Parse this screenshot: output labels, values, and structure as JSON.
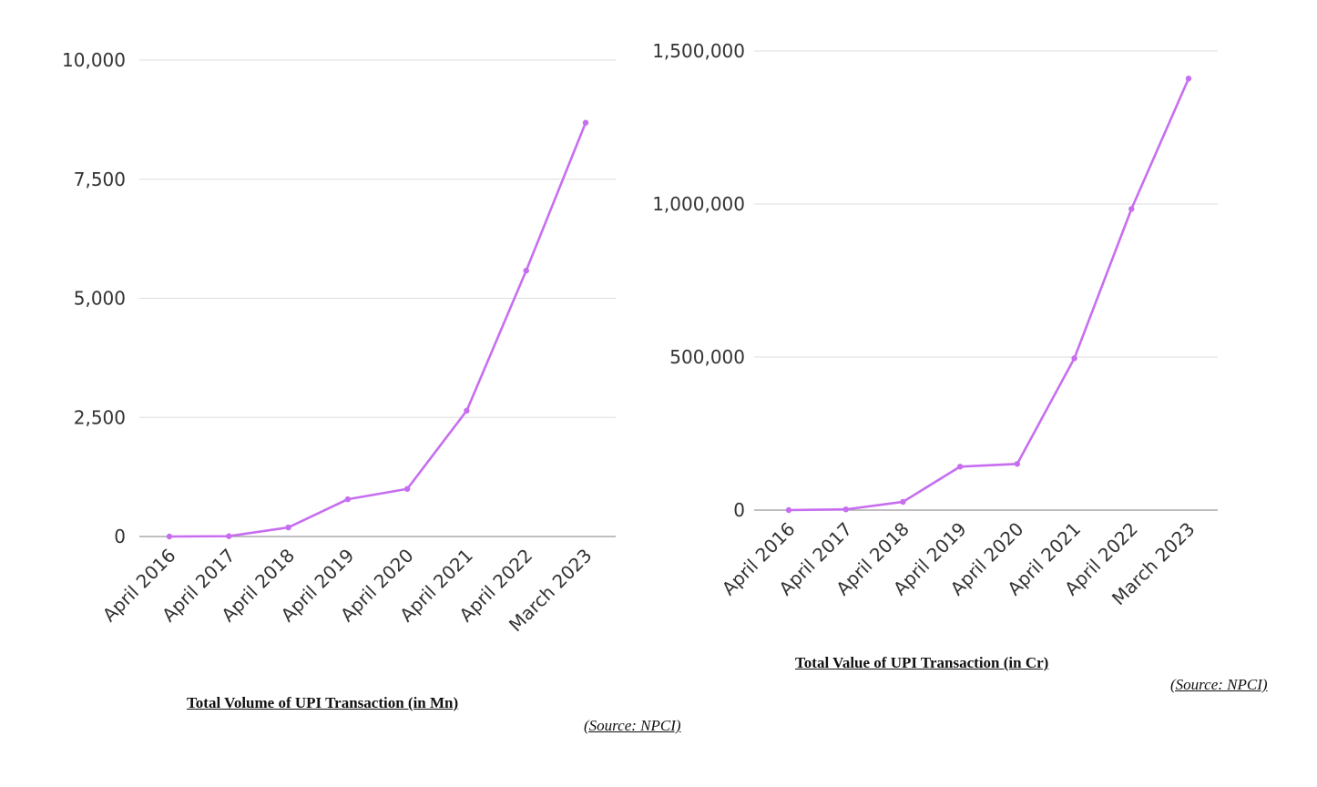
{
  "colors": {
    "line": "#c76ef0",
    "grid": "#dddddd",
    "baseline": "#999999",
    "text": "#333333"
  },
  "captions": {
    "left": "Total Volume of UPI Transaction (in Mn)",
    "right": "Total Value of UPI Transaction (in Cr)",
    "left_source": "(Source: NPCI)",
    "right_source": "(Source: NPCI)"
  },
  "chart_data": [
    {
      "type": "line",
      "title": "Total Volume of UPI Transaction (in Mn)",
      "xlabel": "",
      "ylabel": "",
      "categories": [
        "April 2016",
        "April 2017",
        "April 2018",
        "April 2019",
        "April 2020",
        "April 2021",
        "April 2022",
        "March 2023"
      ],
      "series": [
        {
          "values": [
            0,
            7,
            190,
            782,
            999,
            2641,
            5580,
            8686
          ]
        }
      ],
      "ylim": [
        0,
        10000
      ],
      "yticks": [
        0,
        2500,
        5000,
        7500,
        10000
      ],
      "ytick_labels": [
        "0",
        "2,500",
        "5,000",
        "7,500",
        "10,000"
      ],
      "grid": true,
      "legend": "none"
    },
    {
      "type": "line",
      "title": "Total Value of UPI Transaction (in Cr)",
      "xlabel": "",
      "ylabel": "",
      "categories": [
        "April 2016",
        "April 2017",
        "April 2018",
        "April 2019",
        "April 2020",
        "April 2021",
        "April 2022",
        "March 2023"
      ],
      "series": [
        {
          "values": [
            0,
            2300,
            27000,
            142000,
            151000,
            496000,
            984000,
            1410000
          ]
        }
      ],
      "ylim": [
        0,
        1500000
      ],
      "yticks": [
        0,
        500000,
        1000000,
        1500000
      ],
      "ytick_labels": [
        "0",
        "500,000",
        "1,000,000",
        "1,500,000"
      ],
      "grid": true,
      "legend": "none"
    }
  ]
}
